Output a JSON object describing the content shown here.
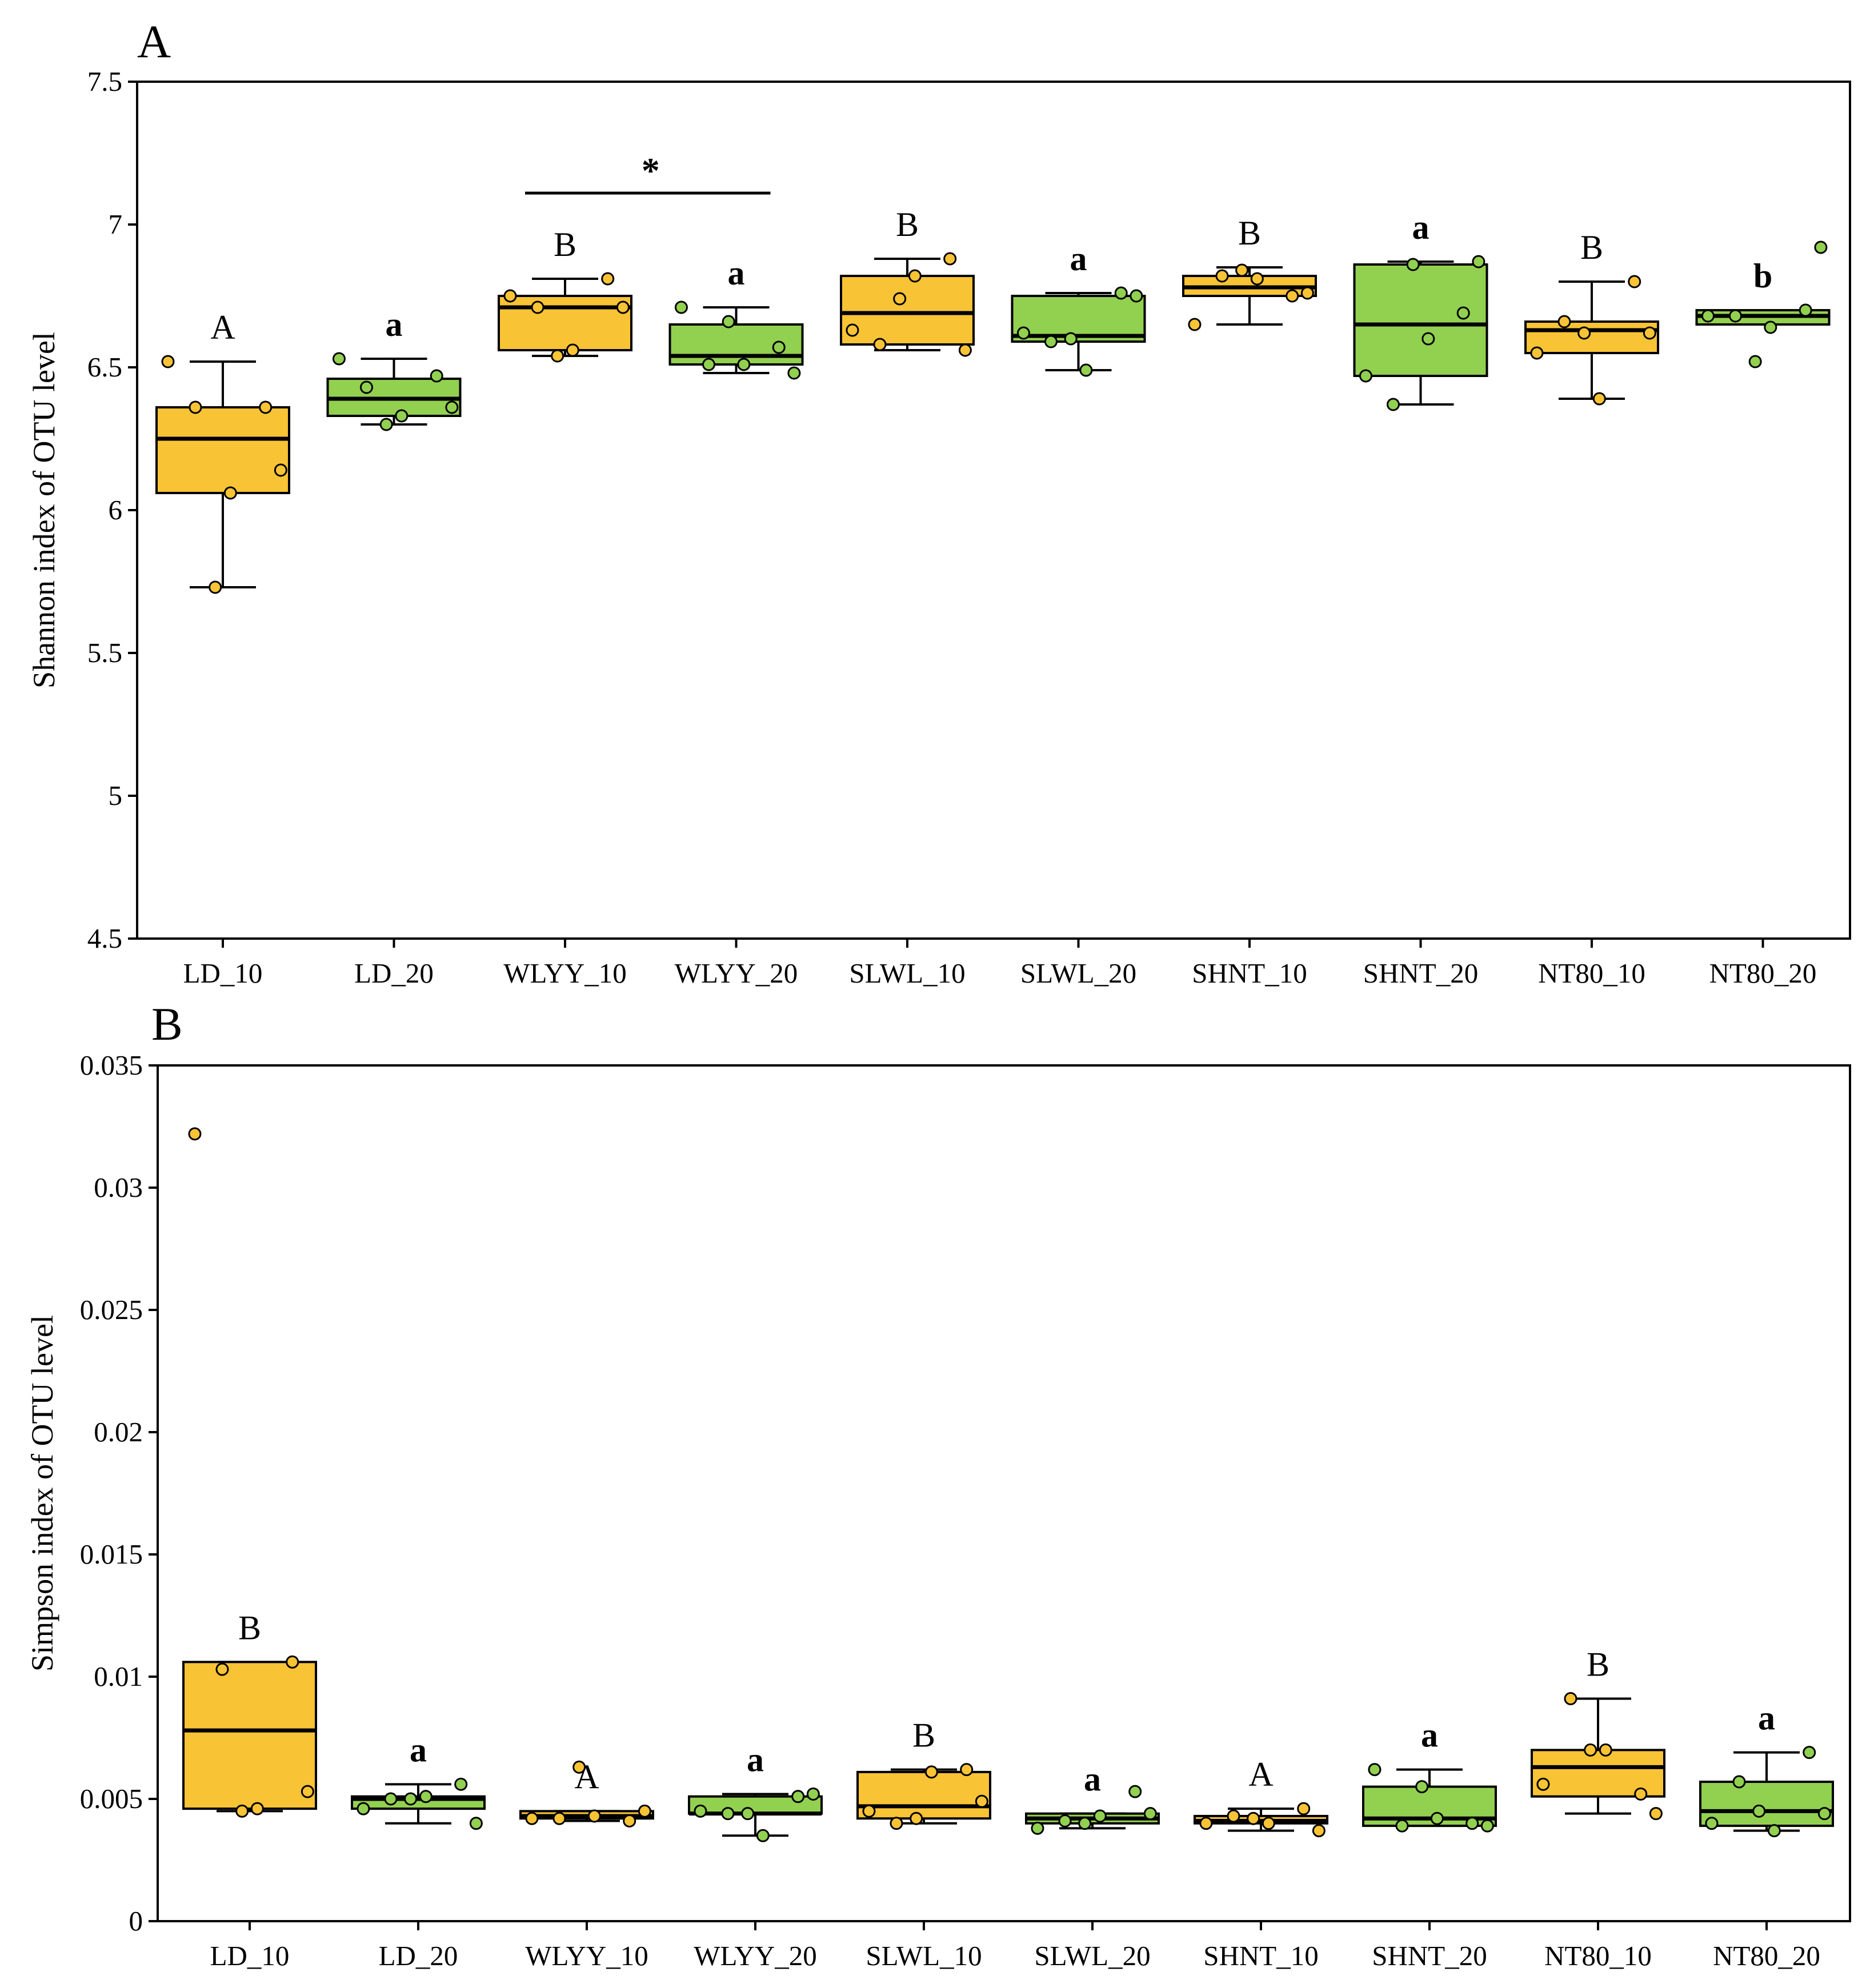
{
  "colors": {
    "depth10": "#f9c336",
    "depth20": "#92d050",
    "line": "#000000"
  },
  "chart_data": [
    {
      "panel": "A",
      "type": "box",
      "ylabel": "Shannon index of OTU level",
      "ylim": [
        4.5,
        7.5
      ],
      "yticks": [
        4.5,
        5,
        5.5,
        6,
        6.5,
        7,
        7.5
      ],
      "ytick_labels": [
        "4.5",
        "5",
        "5.5",
        "6",
        "6.5",
        "7",
        "7.5"
      ],
      "categories": [
        "LD_10",
        "LD_20",
        "WLYY_10",
        "WLYY_20",
        "SLWL_10",
        "SLWL_20",
        "SHNT_10",
        "SHNT_20",
        "NT80_10",
        "NT80_20"
      ],
      "boxes": [
        {
          "label": "LD_10",
          "depth": "10",
          "min": 5.73,
          "q1": 6.06,
          "median": 6.25,
          "q3": 6.36,
          "max": 6.52,
          "points": [
            6.52,
            6.36,
            6.36,
            6.14,
            6.06,
            5.73
          ],
          "sig": "A"
        },
        {
          "label": "LD_20",
          "depth": "20",
          "min": 6.3,
          "q1": 6.33,
          "median": 6.39,
          "q3": 6.46,
          "max": 6.53,
          "points": [
            6.53,
            6.47,
            6.43,
            6.36,
            6.33,
            6.3
          ],
          "sig": "a"
        },
        {
          "label": "WLYY_10",
          "depth": "10",
          "min": 6.54,
          "q1": 6.56,
          "median": 6.71,
          "q3": 6.75,
          "max": 6.81,
          "points": [
            6.75,
            6.81,
            6.71,
            6.71,
            6.56,
            6.54
          ],
          "sig": "B"
        },
        {
          "label": "WLYY_20",
          "depth": "20",
          "min": 6.48,
          "q1": 6.51,
          "median": 6.54,
          "q3": 6.65,
          "max": 6.71,
          "points": [
            6.71,
            6.57,
            6.51,
            6.48,
            6.51,
            6.66
          ],
          "sig": "a"
        },
        {
          "label": "SLWL_10",
          "depth": "10",
          "min": 6.56,
          "q1": 6.58,
          "median": 6.69,
          "q3": 6.82,
          "max": 6.88,
          "points": [
            6.63,
            6.88,
            6.58,
            6.56,
            6.82,
            6.74
          ],
          "sig": "B"
        },
        {
          "label": "SLWL_20",
          "depth": "20",
          "min": 6.49,
          "q1": 6.59,
          "median": 6.61,
          "q3": 6.75,
          "max": 6.76,
          "points": [
            6.62,
            6.76,
            6.59,
            6.75,
            6.49,
            6.6
          ],
          "sig": "a"
        },
        {
          "label": "SHNT_10",
          "depth": "10",
          "min": 6.65,
          "q1": 6.75,
          "median": 6.78,
          "q3": 6.82,
          "max": 6.85,
          "points": [
            6.65,
            6.75,
            6.82,
            6.76,
            6.81,
            6.84
          ],
          "sig": "B"
        },
        {
          "label": "SHNT_20",
          "depth": "20",
          "min": 6.37,
          "q1": 6.47,
          "median": 6.65,
          "q3": 6.86,
          "max": 6.87,
          "points": [
            6.47,
            6.69,
            6.37,
            6.87,
            6.6,
            6.86
          ],
          "sig": "a"
        },
        {
          "label": "NT80_10",
          "depth": "10",
          "min": 6.39,
          "q1": 6.55,
          "median": 6.63,
          "q3": 6.66,
          "max": 6.8,
          "points": [
            6.55,
            6.8,
            6.66,
            6.62,
            6.39,
            6.62
          ],
          "sig": "B"
        },
        {
          "label": "NT80_20",
          "depth": "20",
          "min": 6.65,
          "q1": 6.65,
          "median": 6.68,
          "q3": 6.7,
          "max": 6.7,
          "points": [
            6.68,
            6.7,
            6.68,
            6.92,
            6.64,
            6.52
          ],
          "sig": "b"
        }
      ],
      "significance_bar": {
        "from": "WLYY_10",
        "to": "WLYY_20",
        "label": "*"
      }
    },
    {
      "panel": "B",
      "type": "box",
      "ylabel": "Simpson index of OTU level",
      "ylim": [
        0,
        0.035
      ],
      "yticks": [
        0,
        0.005,
        0.01,
        0.015,
        0.02,
        0.025,
        0.03,
        0.035
      ],
      "ytick_labels": [
        "0",
        "0.005",
        "0.01",
        "0.015",
        "0.02",
        "0.025",
        "0.03",
        "0.035"
      ],
      "categories": [
        "LD_10",
        "LD_20",
        "WLYY_10",
        "WLYY_20",
        "SLWL_10",
        "SLWL_20",
        "SHNT_10",
        "SHNT_20",
        "NT80_10",
        "NT80_20"
      ],
      "boxes": [
        {
          "label": "LD_10",
          "depth": "10",
          "min": 0.0045,
          "q1": 0.0046,
          "median": 0.0078,
          "q3": 0.0106,
          "max": 0.0106,
          "points": [
            0.0322,
            0.0106,
            0.0103,
            0.0053,
            0.0046,
            0.0045
          ],
          "sig": "B"
        },
        {
          "label": "LD_20",
          "depth": "20",
          "min": 0.004,
          "q1": 0.0046,
          "median": 0.005,
          "q3": 0.0051,
          "max": 0.0056,
          "points": [
            0.0046,
            0.0056,
            0.005,
            0.004,
            0.0051,
            0.005
          ],
          "sig": "a"
        },
        {
          "label": "WLYY_10",
          "depth": "10",
          "min": 0.0041,
          "q1": 0.0042,
          "median": 0.0043,
          "q3": 0.0045,
          "max": 0.0045,
          "points": [
            0.0042,
            0.0041,
            0.0042,
            0.0045,
            0.0043,
            0.0063
          ],
          "sig": "A"
        },
        {
          "label": "WLYY_20",
          "depth": "20",
          "min": 0.0035,
          "q1": 0.0044,
          "median": 0.0044,
          "q3": 0.0051,
          "max": 0.0052,
          "points": [
            0.0045,
            0.0051,
            0.0044,
            0.0052,
            0.0035,
            0.0044
          ],
          "sig": "a"
        },
        {
          "label": "SLWL_10",
          "depth": "10",
          "min": 0.004,
          "q1": 0.0042,
          "median": 0.0047,
          "q3": 0.0061,
          "max": 0.0062,
          "points": [
            0.0045,
            0.0062,
            0.004,
            0.0049,
            0.0061,
            0.0042
          ],
          "sig": "B"
        },
        {
          "label": "SLWL_20",
          "depth": "20",
          "min": 0.0038,
          "q1": 0.004,
          "median": 0.0042,
          "q3": 0.0044,
          "max": 0.0044,
          "points": [
            0.0038,
            0.0053,
            0.0041,
            0.0044,
            0.0043,
            0.004
          ],
          "sig": "a"
        },
        {
          "label": "SHNT_10",
          "depth": "10",
          "min": 0.0037,
          "q1": 0.004,
          "median": 0.0041,
          "q3": 0.0043,
          "max": 0.0046,
          "points": [
            0.004,
            0.0046,
            0.0043,
            0.0037,
            0.004,
            0.0042
          ],
          "sig": "A"
        },
        {
          "label": "SHNT_20",
          "depth": "20",
          "min": 0.0039,
          "q1": 0.0039,
          "median": 0.0042,
          "q3": 0.0055,
          "max": 0.0062,
          "points": [
            0.0062,
            0.004,
            0.0039,
            0.0039,
            0.0042,
            0.0055
          ],
          "sig": "a"
        },
        {
          "label": "NT80_10",
          "depth": "10",
          "min": 0.0044,
          "q1": 0.0051,
          "median": 0.0063,
          "q3": 0.007,
          "max": 0.0091,
          "points": [
            0.0056,
            0.0052,
            0.0091,
            0.0044,
            0.007,
            0.007
          ],
          "sig": "B"
        },
        {
          "label": "NT80_20",
          "depth": "20",
          "min": 0.0037,
          "q1": 0.0039,
          "median": 0.0045,
          "q3": 0.0057,
          "max": 0.0069,
          "points": [
            0.004,
            0.0069,
            0.0057,
            0.0044,
            0.0037,
            0.0045
          ],
          "sig": "a"
        }
      ]
    }
  ]
}
